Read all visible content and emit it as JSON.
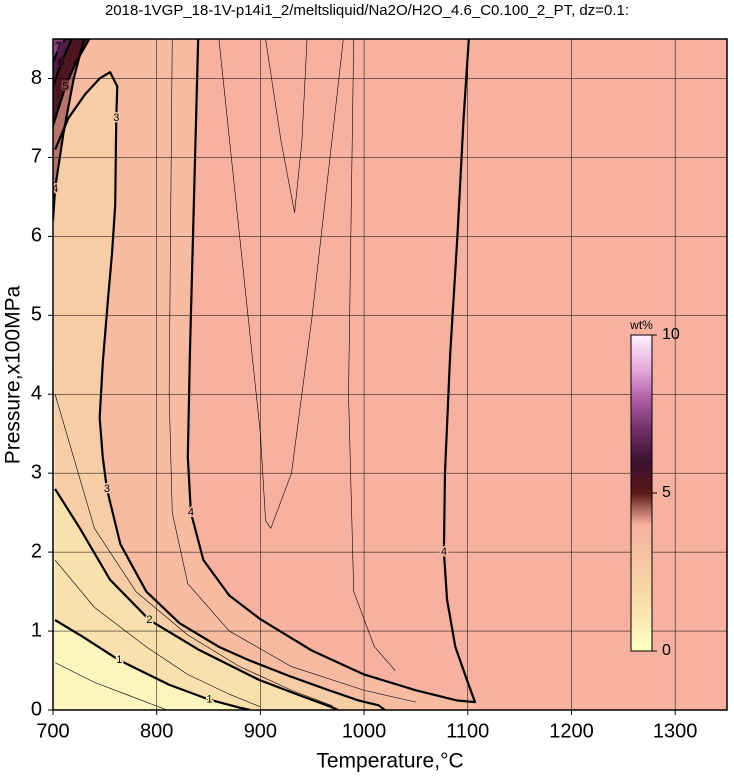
{
  "chart_data": {
    "type": "contour",
    "title": "2018-1VGP_18-1V-p14i1_2/meltsliquid/Na2O/H2O_4.6_C0.100_2_PT, dz=0.1:",
    "x_label": "Temperature,°C",
    "y_label": "Pressure,x100MPa",
    "xlim": [
      700,
      1350
    ],
    "ylim": [
      0,
      8.5
    ],
    "xticks": [
      700,
      800,
      900,
      1000,
      1100,
      1200,
      1300
    ],
    "yticks": [
      0,
      1,
      2,
      3,
      4,
      5,
      6,
      7,
      8
    ],
    "grid": true,
    "colorbar": {
      "label": "wt%",
      "lim": [
        0,
        10
      ],
      "ticks": [
        0,
        5,
        10
      ],
      "colors": [
        "#ffffc8",
        "#fbeab2",
        "#f7d6a8",
        "#f6c4a4",
        "#f7b1a0",
        "#5a1818",
        "#3a1030",
        "#70306a",
        "#b060a8",
        "#e8b0e0",
        "#fff0ff"
      ]
    },
    "contours": [
      {
        "level": 4,
        "x": [
          840,
          838,
          835,
          832,
          830,
          833,
          845,
          870,
          900,
          950,
          1000,
          1050,
          1090,
          1107,
          1100,
          1088,
          1080,
          1077,
          1078,
          1083,
          1090,
          1096,
          1101
        ],
        "y": [
          8.5,
          7.5,
          6,
          4.5,
          3.2,
          2.5,
          1.9,
          1.45,
          1.15,
          0.75,
          0.45,
          0.25,
          0.12,
          0.1,
          0.35,
          0.8,
          1.4,
          2.0,
          3.0,
          4.5,
          6.0,
          7.5,
          8.5
        ]
      },
      {
        "level": 3,
        "x": [
          702,
          715,
          731,
          745,
          755,
          762,
          761,
          760,
          757,
          753,
          748,
          745,
          748,
          752,
          765,
          790,
          822,
          860,
          889,
          930,
          966,
          995,
          1014,
          1020
        ],
        "y": [
          7.1,
          7.5,
          7.8,
          8.0,
          8.08,
          7.9,
          7.5,
          6.4,
          5.8,
          5.2,
          4.4,
          3.7,
          3.2,
          2.8,
          2.1,
          1.5,
          1.1,
          0.8,
          0.63,
          0.42,
          0.25,
          0.12,
          0.06,
          0
        ]
      },
      {
        "level": 2,
        "x": [
          702,
          726,
          755,
          793,
          841,
          899,
          937,
          966,
          975
        ],
        "y": [
          2.8,
          2.3,
          1.65,
          1.14,
          0.76,
          0.38,
          0.19,
          0.05,
          0
        ]
      },
      {
        "level": 1,
        "x": [
          702,
          726,
          764,
          812,
          851,
          880,
          890
        ],
        "y": [
          1.14,
          0.95,
          0.63,
          0.32,
          0.13,
          0.03,
          0
        ]
      },
      {
        "level": 0.5,
        "x": [
          702,
          740,
          780,
          810
        ],
        "y": [
          0.6,
          0.35,
          0.15,
          0
        ]
      },
      {
        "level": 1.5,
        "x": [
          702,
          740,
          790,
          830,
          870,
          900
        ],
        "y": [
          1.9,
          1.3,
          0.8,
          0.45,
          0.2,
          0.04
        ]
      },
      {
        "level": 2.5,
        "x": [
          702,
          740,
          780,
          830,
          880,
          930,
          970
        ],
        "y": [
          4.0,
          2.3,
          1.5,
          0.95,
          0.55,
          0.25,
          0.05
        ]
      },
      {
        "level": 3.8,
        "x": [
          815,
          812,
          815,
          830,
          870,
          930,
          1000,
          1050
        ],
        "y": [
          8.5,
          4,
          2.5,
          1.6,
          1.0,
          0.55,
          0.25,
          0.1
        ]
      },
      {
        "level": 4.1,
        "x": [
          860,
          880,
          900,
          905,
          910,
          930,
          950,
          980
        ],
        "y": [
          8.5,
          6,
          3.5,
          2.4,
          2.3,
          3,
          5,
          8.5
        ]
      },
      {
        "level": 4.1,
        "x": [
          905,
          920,
          933,
          940,
          945
        ],
        "y": [
          8.5,
          7.2,
          6.3,
          7.2,
          8.5
        ]
      },
      {
        "level": 3.95,
        "x": [
          990,
          985,
          990,
          1010,
          1030
        ],
        "y": [
          8.5,
          4,
          1.5,
          0.8,
          0.5
        ]
      },
      {
        "level": 4,
        "x": [
          700,
          702,
          710,
          720,
          730
        ],
        "y": [
          6.2,
          6.6,
          7.3,
          8.0,
          8.5
        ]
      },
      {
        "level": 5,
        "x": [
          700,
          712,
          722,
          735
        ],
        "y": [
          7.4,
          7.9,
          8.2,
          8.5
        ]
      },
      {
        "level": 6,
        "x": [
          700,
          708,
          718
        ],
        "y": [
          7.9,
          8.2,
          8.5
        ]
      },
      {
        "level": 7,
        "x": [
          700,
          706,
          712
        ],
        "y": [
          8.2,
          8.4,
          8.5
        ]
      }
    ]
  }
}
